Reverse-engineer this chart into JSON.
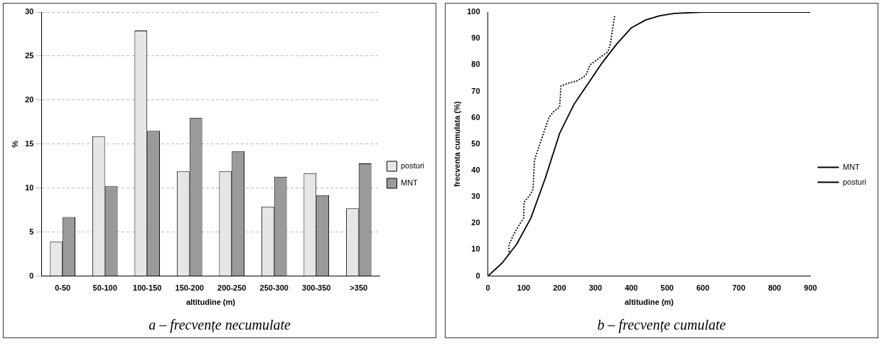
{
  "chart_data": [
    {
      "type": "bar",
      "title": "a – frecvențe necumulate",
      "xlabel": "altitudine (m)",
      "ylabel": "%",
      "categories": [
        "0-50",
        "50-100",
        "100-150",
        "150-200",
        "200-250",
        "250-300",
        "300-350",
        ">350"
      ],
      "series": [
        {
          "name": "posturi",
          "color": "#e6e6e6",
          "values": [
            3.9,
            15.9,
            27.9,
            11.9,
            11.9,
            7.9,
            11.7,
            7.7
          ]
        },
        {
          "name": "MNT",
          "color": "#9a9a9a",
          "values": [
            6.7,
            10.2,
            16.5,
            18,
            14.2,
            11.3,
            9.2,
            12.8
          ]
        }
      ],
      "ylim": [
        0,
        30
      ],
      "yticks": [
        0,
        5,
        10,
        15,
        20,
        25,
        30
      ],
      "grid": "y",
      "legend": "right"
    },
    {
      "type": "line",
      "title": "b – frecvențe cumulate",
      "xlabel": "altitudine (m)",
      "ylabel": "frecventa cumulata (%)",
      "series": [
        {
          "name": "MNT",
          "color": "#000000",
          "line_style": "solid",
          "x": [
            0,
            40,
            80,
            120,
            160,
            200,
            240,
            280,
            320,
            360,
            400,
            440,
            480,
            520,
            600,
            700,
            800,
            900
          ],
          "values": [
            0,
            5,
            12,
            22,
            37,
            54,
            65,
            73,
            81,
            88,
            94,
            97,
            98.6,
            99.5,
            100,
            100,
            100,
            100
          ]
        },
        {
          "name": "posturi",
          "color": "#000000",
          "line_style": "dotted",
          "x": [
            59,
            59,
            73,
            90,
            100,
            101,
            119,
            126,
            130,
            170,
            181,
            200,
            204,
            223,
            250,
            273,
            285,
            335,
            342,
            346,
            354
          ],
          "values": [
            8,
            12,
            16,
            20,
            22,
            28,
            31,
            33,
            44,
            60,
            62,
            64,
            72,
            73,
            74,
            76,
            80,
            85,
            88,
            92,
            99
          ]
        }
      ],
      "xlim": [
        0,
        900
      ],
      "xticks": [
        0,
        100,
        200,
        300,
        400,
        500,
        600,
        700,
        800,
        900
      ],
      "ylim": [
        0,
        100
      ],
      "yticks": [
        0,
        10,
        20,
        30,
        40,
        50,
        60,
        70,
        80,
        90,
        100
      ],
      "grid": false,
      "legend": "right",
      "marker": "none"
    }
  ]
}
